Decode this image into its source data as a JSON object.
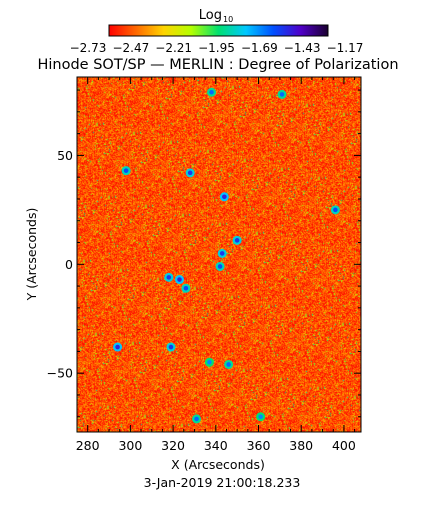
{
  "colorbar": {
    "title": "Log",
    "title_subscript": "10",
    "tick_labels": [
      "-2.73",
      "-2.47",
      "-2.21",
      "-1.95",
      "-1.69",
      "-1.43",
      "-1.17"
    ],
    "range": [
      -2.73,
      -1.17
    ],
    "colors": [
      "#ff0000",
      "#ff6a00",
      "#ffd400",
      "#b4ff00",
      "#00e070",
      "#00c8ff",
      "#0050ff",
      "#5000c8",
      "#1a0030"
    ]
  },
  "chart_data": {
    "type": "heatmap",
    "title": "Hinode SOT/SP — MERLIN : Degree of Polarization",
    "xlabel": "X (Arcseconds)",
    "ylabel": "Y (Arcseconds)",
    "xlim": [
      275,
      408
    ],
    "ylim": [
      -77,
      86
    ],
    "xticks": [
      280,
      300,
      320,
      340,
      360,
      380,
      400
    ],
    "yticks": [
      -50,
      0,
      50
    ],
    "value_range": [
      -2.73,
      -1.17
    ],
    "typical_value": -2.6,
    "features": [
      {
        "x": 294,
        "y": -38,
        "value": -1.45
      },
      {
        "x": 319,
        "y": -38,
        "value": -1.5
      },
      {
        "x": 323,
        "y": -7,
        "value": -1.45
      },
      {
        "x": 318,
        "y": -6,
        "value": -1.5
      },
      {
        "x": 326,
        "y": -11,
        "value": -1.55
      },
      {
        "x": 350,
        "y": 11,
        "value": -1.5
      },
      {
        "x": 342,
        "y": -1,
        "value": -1.55
      },
      {
        "x": 328,
        "y": 42,
        "value": -1.5
      },
      {
        "x": 344,
        "y": 31,
        "value": -1.45
      },
      {
        "x": 343,
        "y": 5,
        "value": -1.5
      },
      {
        "x": 396,
        "y": 25,
        "value": -1.55
      },
      {
        "x": 298,
        "y": 43,
        "value": -1.55
      },
      {
        "x": 338,
        "y": 79,
        "value": -1.6
      },
      {
        "x": 371,
        "y": 78,
        "value": -1.6
      },
      {
        "x": 361,
        "y": -70,
        "value": -1.65
      },
      {
        "x": 331,
        "y": -71,
        "value": -1.6
      },
      {
        "x": 337,
        "y": -45,
        "value": -1.65
      },
      {
        "x": 346,
        "y": -46,
        "value": -1.6
      }
    ]
  },
  "footer": {
    "timestamp": "3-Jan-2019 21:00:18.233"
  }
}
